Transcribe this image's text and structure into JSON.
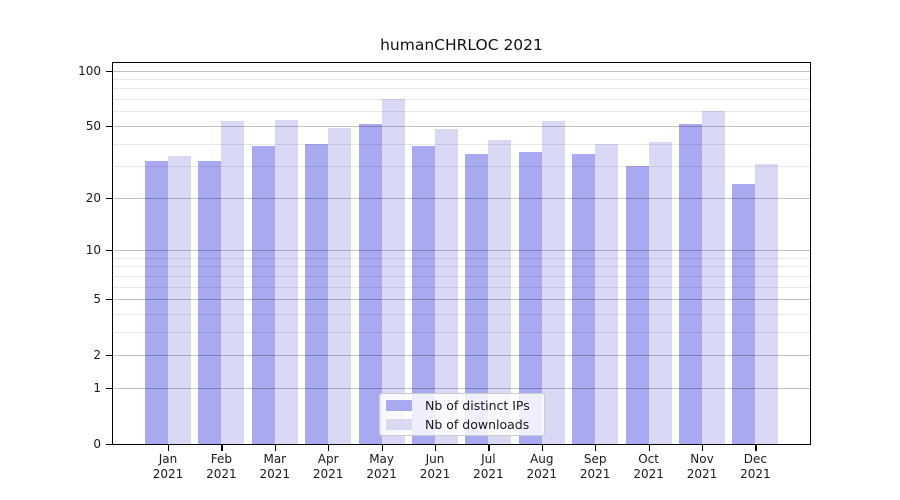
{
  "chart_data": {
    "type": "bar",
    "title": "humanCHRLOC 2021",
    "categories": [
      "Jan",
      "Feb",
      "Mar",
      "Apr",
      "May",
      "Jun",
      "Jul",
      "Aug",
      "Sep",
      "Oct",
      "Nov",
      "Dec"
    ],
    "category_year_suffix": "2021",
    "series": [
      {
        "name": "Nb of distinct IPs",
        "key": "distinct-ips",
        "color": "#a9a9f2",
        "values": [
          32,
          32,
          39,
          40,
          51,
          39,
          35,
          36,
          35,
          30,
          51,
          24
        ]
      },
      {
        "name": "Nb of downloads",
        "key": "downloads",
        "color": "#d9d9f6",
        "values": [
          34,
          53,
          54,
          49,
          70,
          48,
          42,
          53,
          40,
          41,
          60,
          31
        ]
      }
    ],
    "yscale": "log1p",
    "ylim": [
      0,
      110
    ],
    "y_major_ticks": [
      100,
      50,
      20,
      10,
      5,
      2,
      1,
      0
    ],
    "y_minor_gridlines": [
      90,
      80,
      70,
      60,
      40,
      30,
      9,
      8,
      7,
      6,
      4,
      3
    ],
    "grid": true,
    "legend_position": "lower center",
    "xlabel": "",
    "ylabel": ""
  }
}
